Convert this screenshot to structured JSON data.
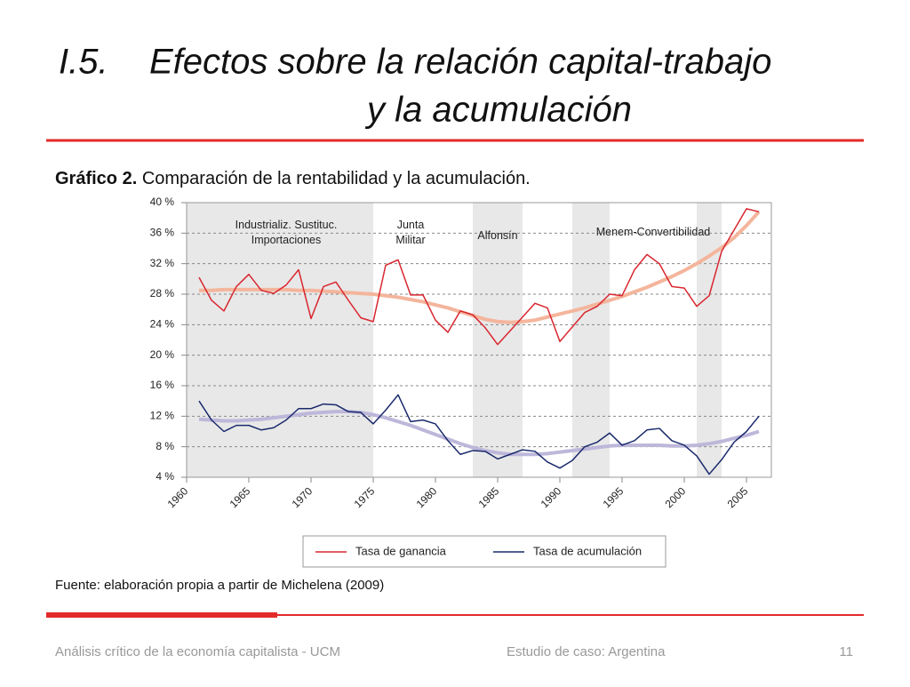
{
  "slide": {
    "title": [
      "I.5.",
      "Efectos sobre la relación capital-trabajo",
      "y la acumulación"
    ],
    "caption_bold": "Gráfico 2.",
    "caption": "Comparación de la rentabilidad y la acumulación.",
    "source": "Fuente: elaboración propia a partir de Michelena (2009)",
    "footer_left": "Análisis crítico de la economía capitalista - UCM",
    "footer_center": "Estudio de caso: Argentina",
    "page": 11
  },
  "chart_data": {
    "type": "line",
    "x": [
      1961,
      1962,
      1963,
      1964,
      1965,
      1966,
      1967,
      1968,
      1969,
      1970,
      1971,
      1972,
      1973,
      1974,
      1975,
      1976,
      1977,
      1978,
      1979,
      1980,
      1981,
      1982,
      1983,
      1984,
      1985,
      1986,
      1987,
      1988,
      1989,
      1990,
      1991,
      1992,
      1993,
      1994,
      1995,
      1996,
      1997,
      1998,
      1999,
      2000,
      2001,
      2002,
      2003,
      2004,
      2005,
      2006
    ],
    "series": [
      {
        "name": "Tasa de ganancia",
        "color": "#d9262f",
        "values": [
          30.2,
          27.2,
          25.8,
          29.0,
          30.6,
          28.5,
          28.1,
          29.2,
          31.2,
          24.8,
          29.0,
          29.6,
          27.2,
          24.9,
          24.4,
          31.8,
          32.5,
          27.9,
          27.9,
          24.6,
          23.0,
          25.8,
          25.3,
          23.6,
          21.4,
          23.2,
          25.0,
          26.8,
          26.2,
          21.8,
          23.7,
          25.6,
          26.4,
          28.0,
          27.8,
          31.2,
          33.2,
          32.0,
          29.0,
          28.8,
          26.4,
          27.8,
          33.6,
          36.4,
          39.2,
          38.8
        ]
      },
      {
        "name": "Tasa de acumulación",
        "color": "#1a2a6c",
        "values": [
          14.0,
          11.5,
          10.0,
          10.8,
          10.8,
          10.2,
          10.5,
          11.5,
          13.0,
          13.0,
          13.6,
          13.5,
          12.6,
          12.5,
          11.0,
          12.8,
          14.8,
          11.3,
          11.5,
          11.0,
          8.8,
          7.0,
          7.5,
          7.4,
          6.4,
          7.0,
          7.6,
          7.4,
          6.0,
          5.2,
          6.2,
          8.0,
          8.6,
          9.8,
          8.2,
          8.8,
          10.2,
          10.4,
          8.8,
          8.2,
          6.8,
          4.4,
          6.3,
          8.6,
          10.0,
          12.0
        ]
      },
      {
        "color": "#f4b59c",
        "values": [
          28.5,
          28.5,
          28.6,
          28.6,
          28.6,
          28.6,
          28.6,
          28.6,
          28.5,
          28.5,
          28.4,
          28.3,
          28.2,
          28.1,
          28.0,
          27.8,
          27.6,
          27.3,
          27.0,
          26.6,
          26.2,
          25.7,
          25.2,
          24.7,
          24.4,
          24.3,
          24.4,
          24.6,
          25.0,
          25.4,
          25.8,
          26.2,
          26.7,
          27.2,
          27.7,
          28.3,
          28.9,
          29.6,
          30.3,
          31.1,
          32.0,
          33.0,
          34.1,
          35.4,
          37.0,
          38.8
        ]
      },
      {
        "color": "#bdb7da",
        "values": [
          11.6,
          11.5,
          11.4,
          11.4,
          11.5,
          11.6,
          11.8,
          12.0,
          12.2,
          12.4,
          12.5,
          12.6,
          12.6,
          12.5,
          12.2,
          11.8,
          11.3,
          10.8,
          10.2,
          9.6,
          9.0,
          8.4,
          7.9,
          7.5,
          7.2,
          7.0,
          7.0,
          7.0,
          7.1,
          7.3,
          7.5,
          7.7,
          7.9,
          8.1,
          8.2,
          8.2,
          8.2,
          8.2,
          8.1,
          8.1,
          8.2,
          8.4,
          8.7,
          9.1,
          9.5,
          10.0
        ]
      }
    ],
    "xlim": [
      1960,
      2007
    ],
    "xticks": [
      1960,
      1965,
      1970,
      1975,
      1980,
      1985,
      1990,
      1995,
      2000,
      2005
    ],
    "ylim": [
      4,
      40
    ],
    "yticks": [
      {
        "value": 4,
        "label": "4 %"
      },
      {
        "value": 8,
        "label": "8 %"
      },
      {
        "value": 12,
        "label": "12 %"
      },
      {
        "value": 16,
        "label": "16 %"
      },
      {
        "value": 20,
        "label": "20 %"
      },
      {
        "value": 24,
        "label": "24 %"
      },
      {
        "value": 28,
        "label": "28 %"
      },
      {
        "value": 32,
        "label": "32 %"
      },
      {
        "value": 36,
        "label": "36 %"
      },
      {
        "value": 40,
        "label": "40 %"
      }
    ],
    "grid": true,
    "shaded_periods": [
      [
        1960,
        1975
      ],
      [
        1983,
        1987
      ],
      [
        1991,
        1994
      ],
      [
        2001,
        2003
      ]
    ],
    "annotations": [
      {
        "x": 1968,
        "y": 37,
        "lines": [
          "Industrializ. Sustituc.",
          "Importaciones"
        ]
      },
      {
        "x": 1978,
        "y": 37,
        "lines": [
          "Junta",
          "Militar"
        ]
      },
      {
        "x": 1985,
        "y": 35.6,
        "lines": [
          "Alfonsín"
        ]
      },
      {
        "x": 1997.5,
        "y": 36.1,
        "lines": [
          "Menem-Convertibilidad"
        ]
      }
    ],
    "legend": "bottom"
  }
}
